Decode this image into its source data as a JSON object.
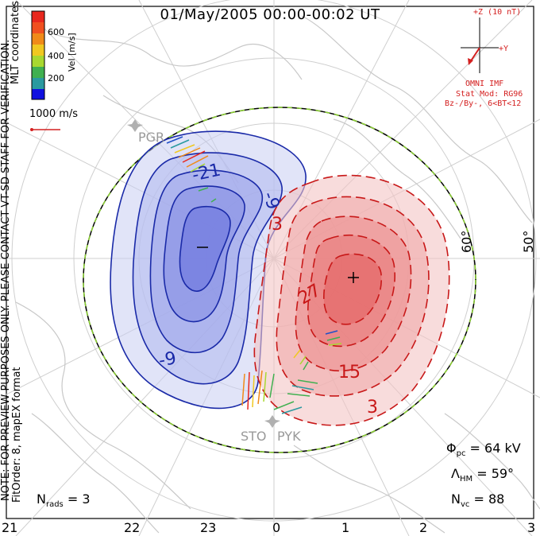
{
  "title": "01/May/2005 00:00-00:02 UT",
  "colorbar": {
    "ticks": [
      "600",
      "400",
      "200"
    ],
    "label": "Vel [m/s]",
    "colors": [
      "#e8281e",
      "#f08a18",
      "#f0c820",
      "#a8d830",
      "#40b050",
      "#2a9aa0",
      "#2050c8",
      "#1010e0"
    ]
  },
  "coordinate_label": "MLT coordinates",
  "speed_ref_label": "1000 m/s",
  "imf": {
    "z_label": "+Z (10 nT)",
    "y_label": "+Y",
    "source": "OMNI IMF",
    "stat_mod": "Stat Mod: RG96",
    "condition": "Bz-/By-, 6<BT<12"
  },
  "latitude_labels": [
    "60°",
    "50°"
  ],
  "contour_labels": {
    "negative": [
      "-21",
      "-9",
      "-9"
    ],
    "positive": [
      "3",
      "27",
      "15",
      "3"
    ],
    "min_marker": "–",
    "max_marker": "+"
  },
  "radars": [
    "PGR",
    "STO",
    "PYK"
  ],
  "side_note": {
    "line1": "NOTE: FOR PREVIEW PURPOSES ONLY. PLEASE CONTACT VT-SD STAFF FOR VERIFICATION.",
    "line2": "FitOrder: 8, mapEX format"
  },
  "stats": {
    "phi_pc_label": "Φ",
    "phi_pc_sub": "pc",
    "phi_pc_value": "= 64 kV",
    "lambda_hm_label": "Λ",
    "lambda_hm_sub": "HM",
    "lambda_hm_value": "= 59°",
    "n_vc_label": "N",
    "n_vc_sub": "vc",
    "n_vc_value": "= 88",
    "n_rads_label": "N",
    "n_rads_sub": "rads",
    "n_rads_value": "= 3"
  },
  "mlt_axis": [
    "21",
    "22",
    "23",
    "0",
    "1",
    "2",
    "3"
  ]
}
